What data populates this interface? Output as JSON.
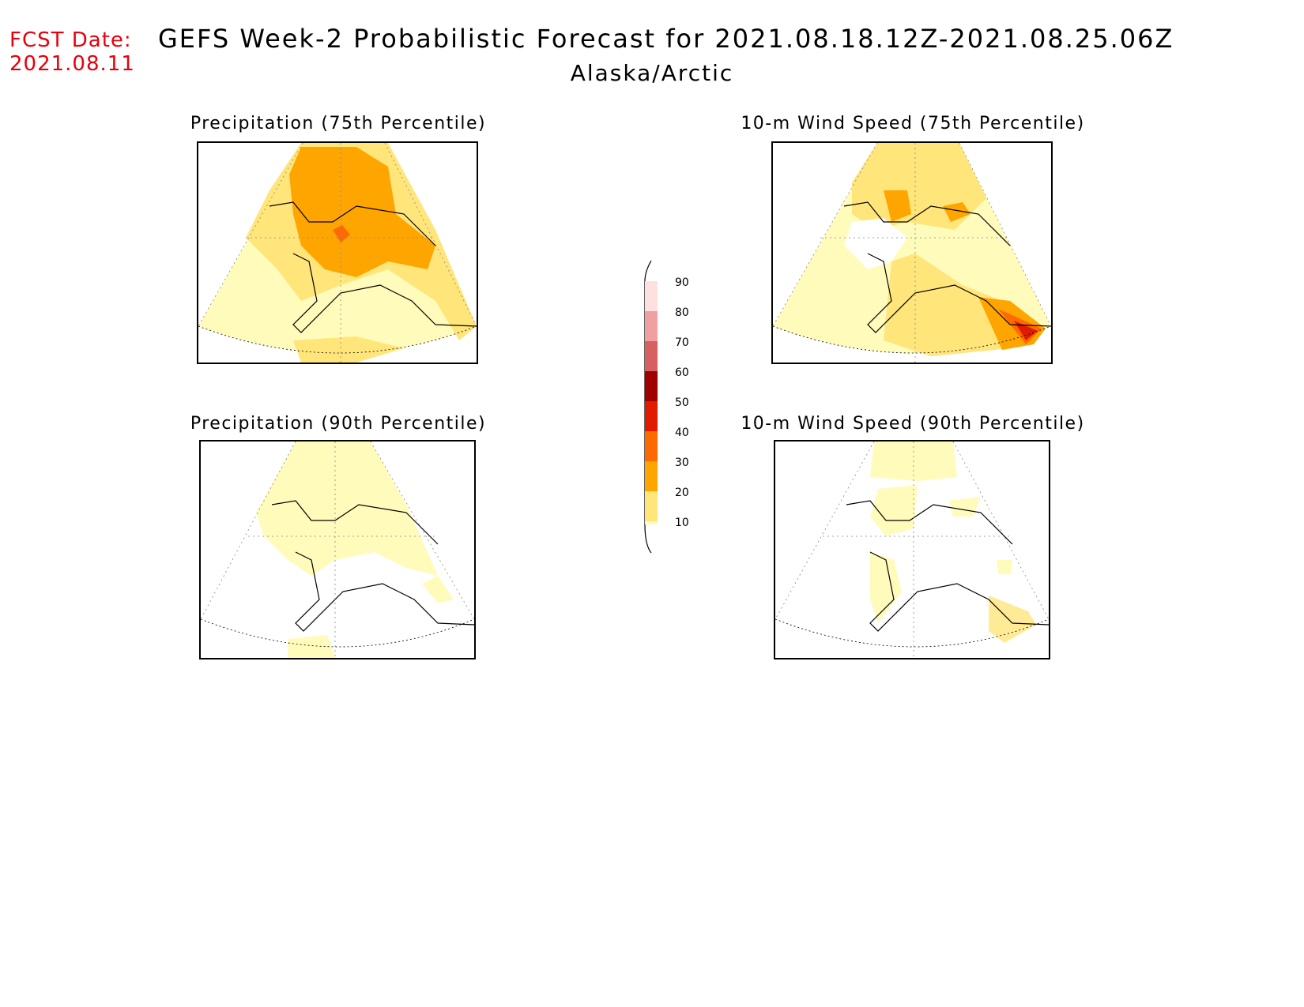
{
  "header": {
    "fcst_label": "FCST Date:",
    "fcst_date": "2021.08.11",
    "title": "GEFS Week-2 Probabilistic Forecast for 2021.08.18.12Z-2021.08.25.06Z",
    "subtitle": "Alaska/Arctic"
  },
  "panels": [
    {
      "id": "precip75",
      "title": "Precipitation (75th Percentile)"
    },
    {
      "id": "wind75",
      "title": "10-m Wind Speed (75th Percentile)"
    },
    {
      "id": "precip90",
      "title": "Precipitation (90th Percentile)"
    },
    {
      "id": "wind90",
      "title": "10-m Wind Speed (90th Percentile)"
    }
  ],
  "colorbar": {
    "labels": [
      "90",
      "80",
      "70",
      "60",
      "50",
      "40",
      "30",
      "20",
      "10"
    ],
    "colors": {
      "10": "#fffbbb",
      "20": "#ffe57a",
      "30": "#ffa500",
      "40": "#ff6a00",
      "50": "#e01b00",
      "60": "#a00000",
      "70": "#d76060",
      "80": "#f0a0a0",
      "90": "#fde0e0"
    }
  }
}
